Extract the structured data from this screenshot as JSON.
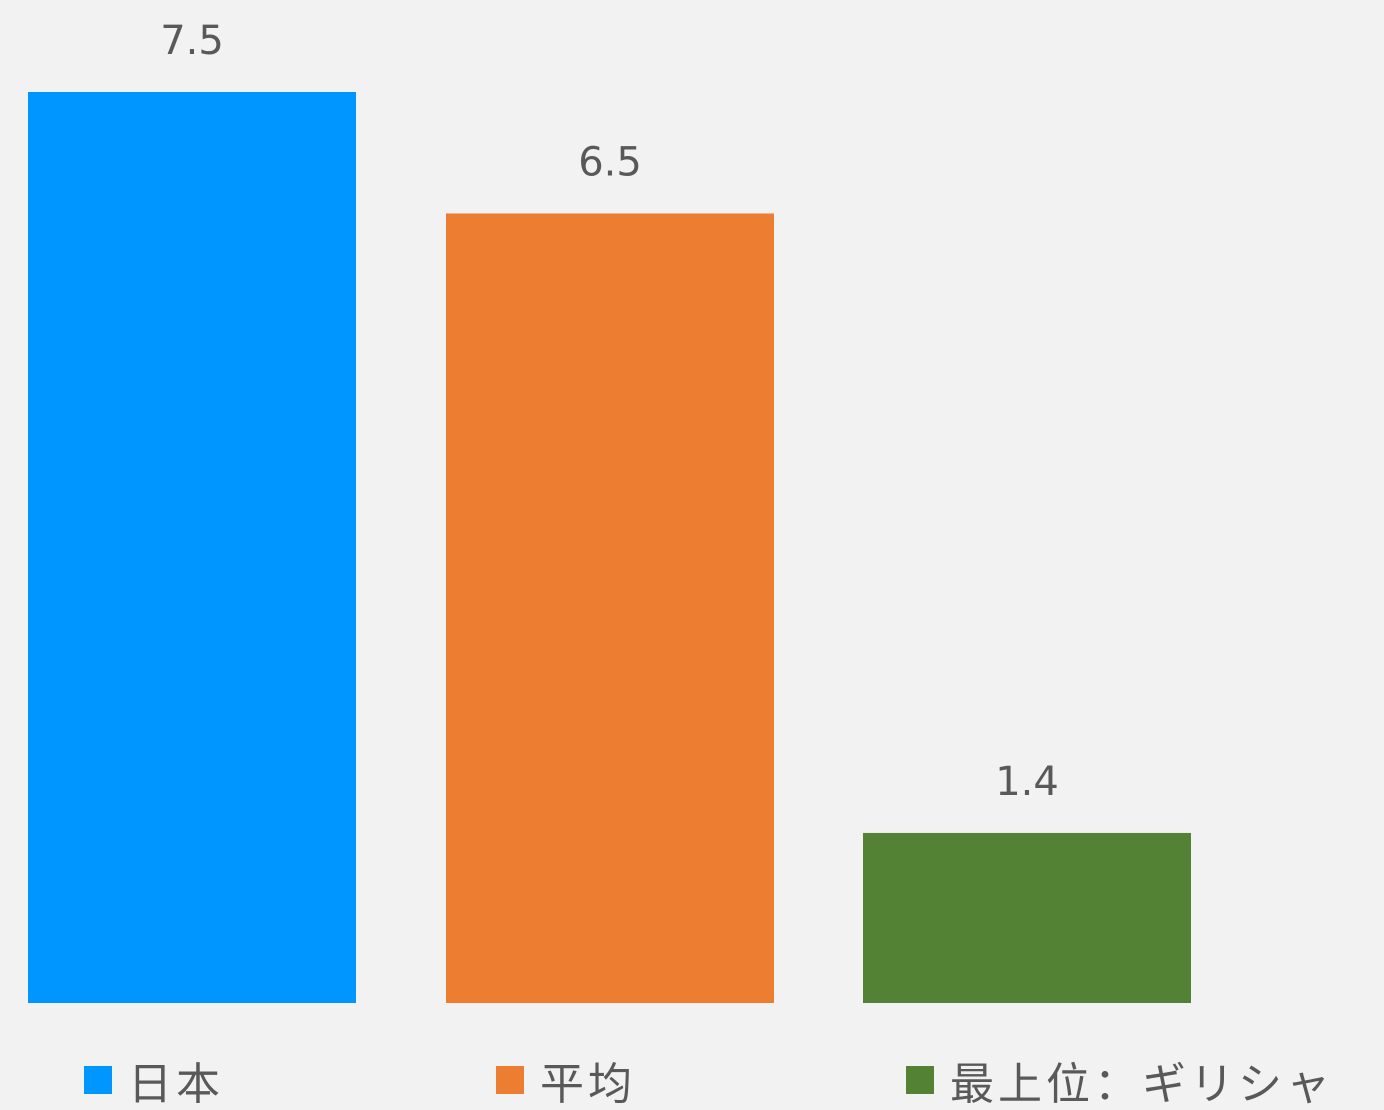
{
  "chart_data": {
    "type": "bar",
    "categories": [
      "日本",
      "平均",
      "最上位：ギリシャ"
    ],
    "values": [
      7.5,
      6.5,
      1.4
    ],
    "colors": [
      "#0096ff",
      "#ed7d31",
      "#548235"
    ],
    "data_labels": [
      "7.5",
      "6.5",
      "1.4"
    ],
    "title": "",
    "xlabel": "",
    "ylabel": "",
    "ylim": [
      0,
      7.5
    ],
    "grid": false,
    "legend": {
      "placement": "bottom",
      "entries": [
        "日本",
        "平均",
        "最上位：ギリシャ"
      ]
    }
  }
}
